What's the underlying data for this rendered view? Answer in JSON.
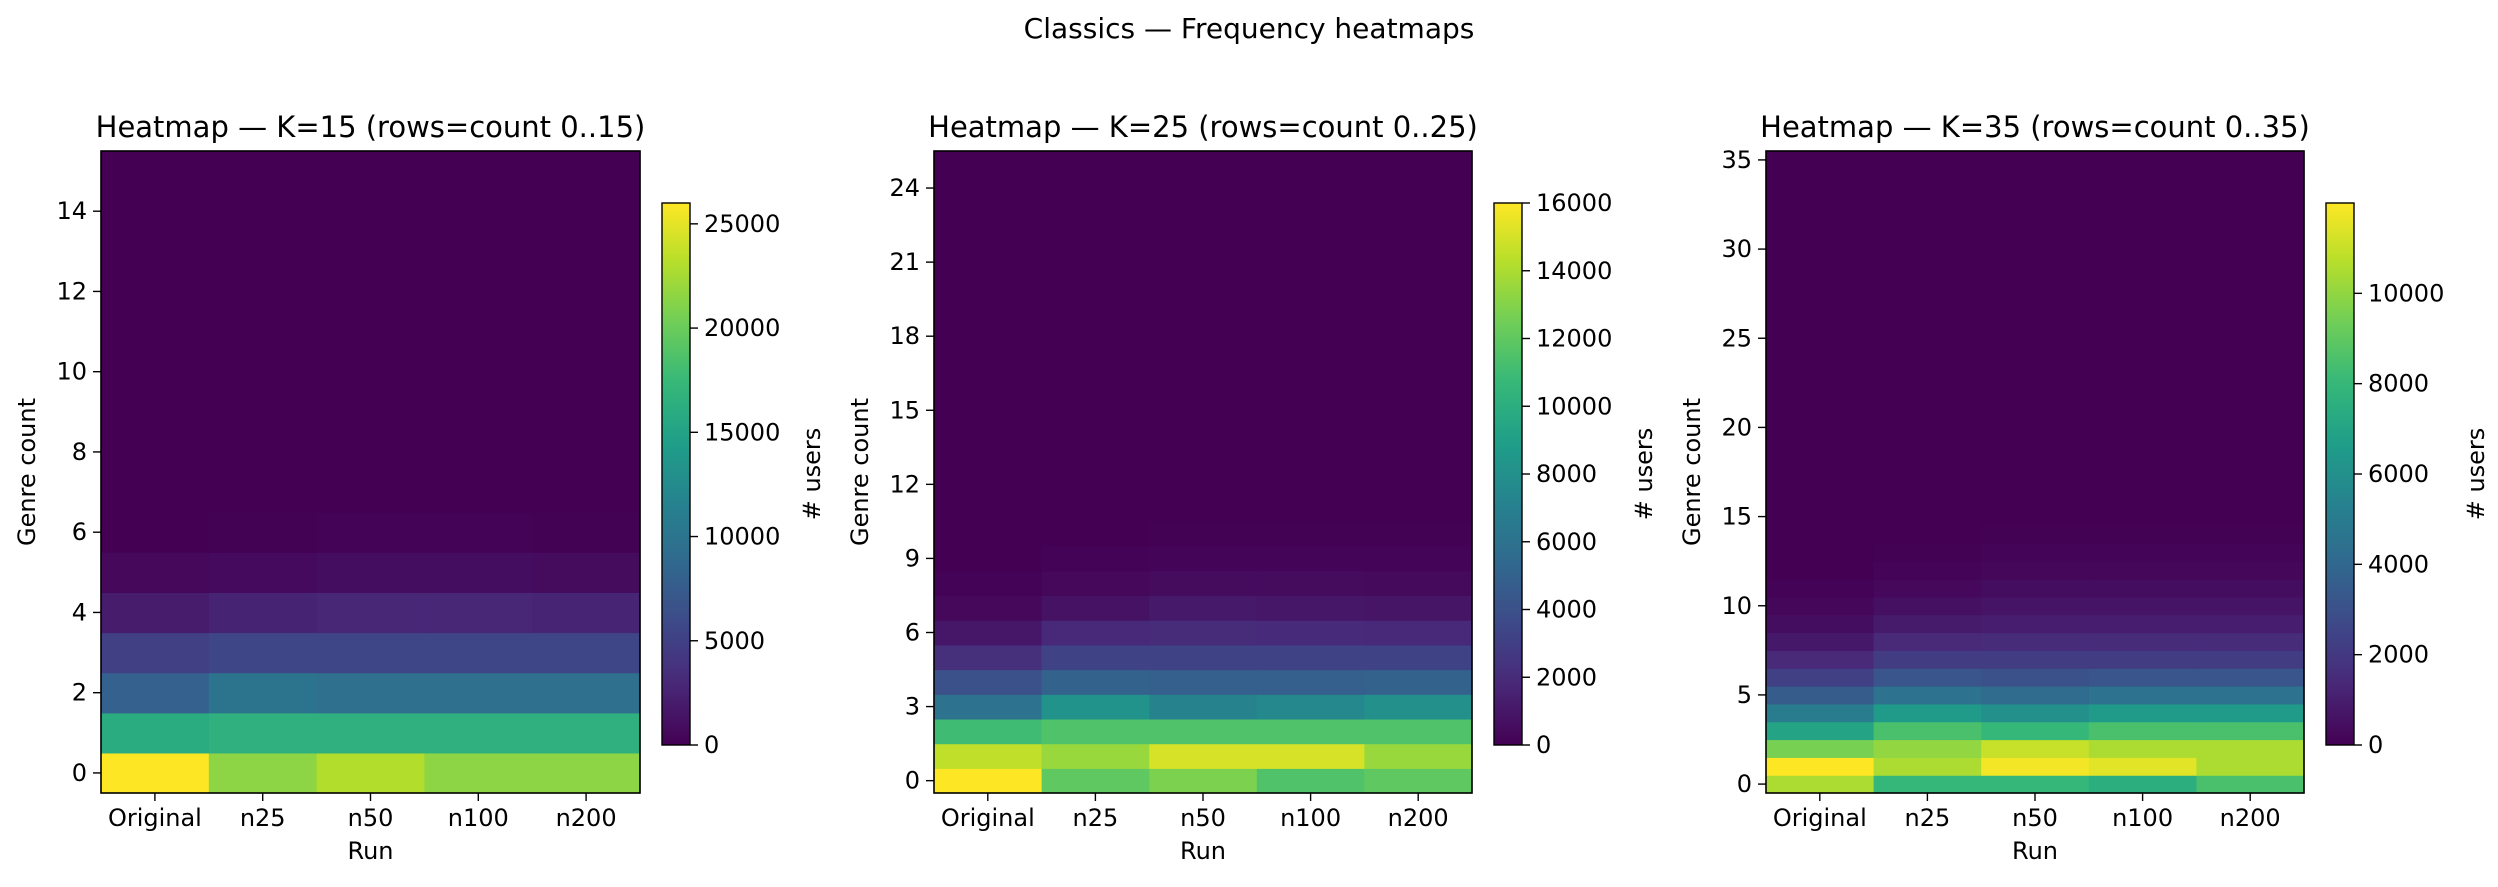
{
  "figure": {
    "suptitle": "Classics — Frequency heatmaps"
  },
  "colormap": [
    "#440154",
    "#482878",
    "#3e4989",
    "#31688e",
    "#26828e",
    "#1f9e89",
    "#35b779",
    "#6ece58",
    "#b5de2b",
    "#fde725"
  ],
  "chart_data": [
    {
      "type": "heatmap",
      "title": "Heatmap — K=15 (rows=count 0..15)",
      "xlabel": "Run",
      "ylabel": "Genre count",
      "x_categories": [
        "Original",
        "n25",
        "n50",
        "n100",
        "n200"
      ],
      "y_ticks": [
        0,
        2,
        4,
        6,
        8,
        10,
        12,
        14
      ],
      "rows": 16,
      "colorbar": {
        "label": "# users",
        "vmin": 0,
        "vmax": 26000,
        "ticks": [
          0,
          5000,
          10000,
          15000,
          20000,
          25000
        ]
      },
      "values": [
        [
          26000,
          21500,
          23000,
          21500,
          21500
        ],
        [
          16000,
          16500,
          16500,
          16500,
          16500
        ],
        [
          8000,
          10000,
          9500,
          9500,
          9500
        ],
        [
          5000,
          5500,
          5500,
          5500,
          5500
        ],
        [
          2000,
          2500,
          2800,
          2800,
          2600
        ],
        [
          500,
          700,
          900,
          900,
          800
        ],
        [
          0,
          100,
          150,
          150,
          100
        ],
        [
          0,
          0,
          0,
          0,
          0
        ],
        [
          0,
          0,
          0,
          0,
          0
        ],
        [
          0,
          0,
          0,
          0,
          0
        ],
        [
          0,
          0,
          0,
          0,
          0
        ],
        [
          0,
          0,
          0,
          0,
          0
        ],
        [
          0,
          0,
          0,
          0,
          0
        ],
        [
          0,
          0,
          0,
          0,
          0
        ],
        [
          0,
          0,
          0,
          0,
          0
        ],
        [
          0,
          0,
          0,
          0,
          0
        ]
      ]
    },
    {
      "type": "heatmap",
      "title": "Heatmap — K=25 (rows=count 0..25)",
      "xlabel": "Run",
      "ylabel": "Genre count",
      "x_categories": [
        "Original",
        "n25",
        "n50",
        "n100",
        "n200"
      ],
      "y_ticks": [
        0,
        3,
        6,
        9,
        12,
        15,
        18,
        21,
        24
      ],
      "rows": 26,
      "colorbar": {
        "label": "# users",
        "vmin": 0,
        "vmax": 16000,
        "ticks": [
          0,
          2000,
          4000,
          6000,
          8000,
          10000,
          12000,
          14000,
          16000
        ]
      },
      "values": [
        [
          16000,
          12000,
          12800,
          11500,
          12000
        ],
        [
          14500,
          13500,
          15000,
          15000,
          13500
        ],
        [
          11000,
          11500,
          11500,
          11500,
          11500
        ],
        [
          6000,
          8200,
          7200,
          7500,
          8000
        ],
        [
          4000,
          5000,
          4800,
          4800,
          5000
        ],
        [
          2200,
          3200,
          3200,
          3200,
          3200
        ],
        [
          1000,
          1800,
          2000,
          1900,
          1800
        ],
        [
          300,
          800,
          1100,
          1000,
          900
        ],
        [
          100,
          300,
          500,
          500,
          400
        ],
        [
          0,
          100,
          200,
          200,
          150
        ],
        [
          0,
          0,
          50,
          50,
          30
        ],
        [
          0,
          0,
          0,
          0,
          0
        ],
        [
          0,
          0,
          0,
          0,
          0
        ],
        [
          0,
          0,
          0,
          0,
          0
        ],
        [
          0,
          0,
          0,
          0,
          0
        ],
        [
          0,
          0,
          0,
          0,
          0
        ],
        [
          0,
          0,
          0,
          0,
          0
        ],
        [
          0,
          0,
          0,
          0,
          0
        ],
        [
          0,
          0,
          0,
          0,
          0
        ],
        [
          0,
          0,
          0,
          0,
          0
        ],
        [
          0,
          0,
          0,
          0,
          0
        ],
        [
          0,
          0,
          0,
          0,
          0
        ],
        [
          0,
          0,
          0,
          0,
          0
        ],
        [
          0,
          0,
          0,
          0,
          0
        ],
        [
          0,
          0,
          0,
          0,
          0
        ],
        [
          0,
          0,
          0,
          0,
          0
        ]
      ]
    },
    {
      "type": "heatmap",
      "title": "Heatmap — K=35 (rows=count 0..35)",
      "xlabel": "Run",
      "ylabel": "Genre count",
      "x_categories": [
        "Original",
        "n25",
        "n50",
        "n100",
        "n200"
      ],
      "y_ticks": [
        0,
        5,
        10,
        15,
        20,
        25,
        30,
        35
      ],
      "rows": 36,
      "colorbar": {
        "label": "# users",
        "vmin": 0,
        "vmax": 12000,
        "ticks": [
          0,
          2000,
          4000,
          6000,
          8000,
          10000
        ]
      },
      "values": [
        [
          10500,
          8000,
          8000,
          7500,
          8500
        ],
        [
          12000,
          10500,
          11800,
          11500,
          10500
        ],
        [
          9500,
          10000,
          11000,
          10500,
          10500
        ],
        [
          7000,
          8500,
          8000,
          8500,
          8500
        ],
        [
          5000,
          6500,
          6000,
          6500,
          6500
        ],
        [
          3500,
          4500,
          4200,
          4500,
          4500
        ],
        [
          2300,
          3200,
          3000,
          3200,
          3200
        ],
        [
          1400,
          2200,
          2200,
          2200,
          2200
        ],
        [
          800,
          1400,
          1500,
          1500,
          1500
        ],
        [
          400,
          900,
          1000,
          1000,
          1000
        ],
        [
          200,
          500,
          650,
          650,
          650
        ],
        [
          80,
          250,
          400,
          400,
          400
        ],
        [
          0,
          100,
          200,
          200,
          200
        ],
        [
          0,
          40,
          100,
          100,
          100
        ],
        [
          0,
          0,
          40,
          40,
          40
        ],
        [
          0,
          0,
          0,
          0,
          0
        ],
        [
          0,
          0,
          0,
          0,
          0
        ],
        [
          0,
          0,
          0,
          0,
          0
        ],
        [
          0,
          0,
          0,
          0,
          0
        ],
        [
          0,
          0,
          0,
          0,
          0
        ],
        [
          0,
          0,
          0,
          0,
          0
        ],
        [
          0,
          0,
          0,
          0,
          0
        ],
        [
          0,
          0,
          0,
          0,
          0
        ],
        [
          0,
          0,
          0,
          0,
          0
        ],
        [
          0,
          0,
          0,
          0,
          0
        ],
        [
          0,
          0,
          0,
          0,
          0
        ],
        [
          0,
          0,
          0,
          0,
          0
        ],
        [
          0,
          0,
          0,
          0,
          0
        ],
        [
          0,
          0,
          0,
          0,
          0
        ],
        [
          0,
          0,
          0,
          0,
          0
        ],
        [
          0,
          0,
          0,
          0,
          0
        ],
        [
          0,
          0,
          0,
          0,
          0
        ],
        [
          0,
          0,
          0,
          0,
          0
        ],
        [
          0,
          0,
          0,
          0,
          0
        ],
        [
          0,
          0,
          0,
          0,
          0
        ],
        [
          0,
          0,
          0,
          0,
          0
        ]
      ]
    }
  ]
}
